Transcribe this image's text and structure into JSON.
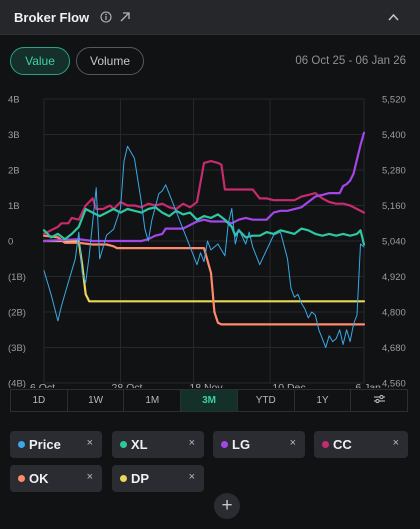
{
  "header": {
    "title": "Broker Flow"
  },
  "toggles": {
    "value_label": "Value",
    "volume_label": "Volume"
  },
  "date_range": "06 Oct 25 - 06 Jan 26",
  "ranges": [
    "1D",
    "1W",
    "1M",
    "3M",
    "YTD",
    "1Y"
  ],
  "active_range": "3M",
  "chips": [
    {
      "label": "Price",
      "color": "#3aa9e6"
    },
    {
      "label": "XL",
      "color": "#2fc7a0"
    },
    {
      "label": "LG",
      "color": "#a446e8"
    },
    {
      "label": "CC",
      "color": "#c62b6e"
    },
    {
      "label": "OK",
      "color": "#ff8a6b"
    },
    {
      "label": "DP",
      "color": "#e8d75a"
    }
  ],
  "chip_close": "×",
  "add_label": "+",
  "chart_data": {
    "type": "line",
    "x_ticks": [
      "6 Oct",
      "28 Oct",
      "18 Nov",
      "10 Dec",
      "6 Jan"
    ],
    "y_left_ticks": [
      "4B",
      "3B",
      "2B",
      "1B",
      "0",
      "(1B)",
      "(2B)",
      "(3B)",
      "(4B)"
    ],
    "y_right_ticks": [
      "5,520",
      "5,400",
      "5,280",
      "5,160",
      "5,040",
      "4,920",
      "4,800",
      "4,680",
      "4,560"
    ],
    "ylim_left": [
      -4,
      4
    ],
    "ylim_right": [
      4560,
      5520
    ],
    "x_range": [
      "2025-10-06",
      "2026-01-06"
    ],
    "grid": true,
    "series": [
      {
        "name": "Price",
        "axis": "right",
        "color": "#3aa9e6",
        "points": [
          [
            0,
            4940
          ],
          [
            2,
            4860
          ],
          [
            4,
            4770
          ],
          [
            5,
            4820
          ],
          [
            7,
            4900
          ],
          [
            9,
            4980
          ],
          [
            10,
            5070
          ],
          [
            11,
            4930
          ],
          [
            12,
            4900
          ],
          [
            13,
            4990
          ],
          [
            15,
            5220
          ],
          [
            16,
            4980
          ],
          [
            18,
            5060
          ],
          [
            20,
            5080
          ],
          [
            22,
            5150
          ],
          [
            23,
            5310
          ],
          [
            24,
            5360
          ],
          [
            26,
            5320
          ],
          [
            28,
            5170
          ],
          [
            29,
            5080
          ],
          [
            30,
            5040
          ],
          [
            31,
            5110
          ],
          [
            33,
            5200
          ],
          [
            34,
            5210
          ],
          [
            35,
            5230
          ],
          [
            36,
            5200
          ],
          [
            38,
            5140
          ],
          [
            40,
            5080
          ],
          [
            42,
            5020
          ],
          [
            44,
            4960
          ],
          [
            45,
            5000
          ],
          [
            46,
            4970
          ],
          [
            47,
            5040
          ],
          [
            48,
            5010
          ],
          [
            50,
            5030
          ],
          [
            52,
            4990
          ],
          [
            53,
            5100
          ],
          [
            54,
            5150
          ],
          [
            55,
            5030
          ],
          [
            56,
            5080
          ],
          [
            58,
            5030
          ],
          [
            59,
            5070
          ],
          [
            60,
            5020
          ],
          [
            62,
            4960
          ],
          [
            64,
            5010
          ],
          [
            66,
            5060
          ],
          [
            68,
            5070
          ],
          [
            70,
            4980
          ],
          [
            71,
            4880
          ],
          [
            72,
            4850
          ],
          [
            73,
            4860
          ],
          [
            74,
            4830
          ],
          [
            75,
            4810
          ],
          [
            76,
            4780
          ],
          [
            77,
            4800
          ],
          [
            78,
            4790
          ],
          [
            79,
            4740
          ],
          [
            80,
            4710
          ],
          [
            81,
            4680
          ],
          [
            82,
            4720
          ],
          [
            83,
            4700
          ],
          [
            84,
            4710
          ],
          [
            85,
            4740
          ],
          [
            86,
            4690
          ],
          [
            87,
            4740
          ],
          [
            88,
            4700
          ],
          [
            89,
            4760
          ],
          [
            90,
            4790
          ],
          [
            91,
            5030
          ],
          [
            92,
            5020
          ]
        ]
      },
      {
        "name": "XL",
        "axis": "left",
        "color": "#2fc7a0",
        "points": [
          [
            0,
            0.3
          ],
          [
            2,
            0.1
          ],
          [
            4,
            0.2
          ],
          [
            6,
            0.05
          ],
          [
            8,
            0.2
          ],
          [
            10,
            0.4
          ],
          [
            12,
            0.9
          ],
          [
            14,
            0.8
          ],
          [
            16,
            0.7
          ],
          [
            18,
            0.8
          ],
          [
            20,
            0.9
          ],
          [
            22,
            0.8
          ],
          [
            24,
            0.9
          ],
          [
            26,
            0.85
          ],
          [
            28,
            0.8
          ],
          [
            30,
            0.9
          ],
          [
            32,
            0.95
          ],
          [
            34,
            0.8
          ],
          [
            36,
            0.7
          ],
          [
            38,
            0.85
          ],
          [
            40,
            0.75
          ],
          [
            42,
            0.8
          ],
          [
            44,
            0.6
          ],
          [
            46,
            0.7
          ],
          [
            48,
            0.65
          ],
          [
            50,
            0.75
          ],
          [
            52,
            0.6
          ],
          [
            54,
            0.4
          ],
          [
            55,
            0.15
          ],
          [
            56,
            0.3
          ],
          [
            58,
            0.1
          ],
          [
            60,
            0.15
          ],
          [
            62,
            0.15
          ],
          [
            64,
            0.25
          ],
          [
            66,
            0.2
          ],
          [
            68,
            0.3
          ],
          [
            70,
            0.25
          ],
          [
            72,
            0.2
          ],
          [
            74,
            0.35
          ],
          [
            76,
            0.3
          ],
          [
            78,
            0.2
          ],
          [
            80,
            0.15
          ],
          [
            82,
            0.2
          ],
          [
            84,
            0.15
          ],
          [
            86,
            0.2
          ],
          [
            88,
            0.15
          ],
          [
            90,
            0.2
          ],
          [
            91,
            0.3
          ],
          [
            92,
            -0.1
          ]
        ]
      },
      {
        "name": "LG",
        "axis": "left",
        "color": "#a446e8",
        "points": [
          [
            0,
            0
          ],
          [
            10,
            0.05
          ],
          [
            14,
            0
          ],
          [
            20,
            0
          ],
          [
            28,
            0
          ],
          [
            30,
            0.05
          ],
          [
            32,
            0.15
          ],
          [
            34,
            0.2
          ],
          [
            35,
            0.35
          ],
          [
            40,
            0.35
          ],
          [
            42,
            0.45
          ],
          [
            44,
            0.55
          ],
          [
            46,
            0.6
          ],
          [
            48,
            0.55
          ],
          [
            52,
            0.55
          ],
          [
            54,
            0.5
          ],
          [
            56,
            0.6
          ],
          [
            58,
            0.65
          ],
          [
            60,
            0.6
          ],
          [
            64,
            0.6
          ],
          [
            66,
            0.8
          ],
          [
            68,
            0.85
          ],
          [
            70,
            0.85
          ],
          [
            74,
            0.95
          ],
          [
            78,
            1.25
          ],
          [
            80,
            1.3
          ],
          [
            82,
            1.35
          ],
          [
            85,
            1.35
          ],
          [
            86,
            1.55
          ],
          [
            87,
            1.6
          ],
          [
            88,
            1.7
          ],
          [
            89,
            1.9
          ],
          [
            90,
            2.3
          ],
          [
            91,
            2.7
          ],
          [
            92,
            3.05
          ]
        ]
      },
      {
        "name": "CC",
        "axis": "left",
        "color": "#c62b6e",
        "points": [
          [
            0,
            0.2
          ],
          [
            2,
            0.3
          ],
          [
            4,
            0.4
          ],
          [
            5,
            0.5
          ],
          [
            7,
            0.5
          ],
          [
            8,
            0.65
          ],
          [
            10,
            0.6
          ],
          [
            12,
            1.0
          ],
          [
            14,
            1.2
          ],
          [
            15,
            0.9
          ],
          [
            17,
            0.9
          ],
          [
            19,
            1.0
          ],
          [
            20,
            0.9
          ],
          [
            22,
            1.1
          ],
          [
            24,
            1.0
          ],
          [
            26,
            1.0
          ],
          [
            28,
            0.95
          ],
          [
            30,
            1.05
          ],
          [
            32,
            1.0
          ],
          [
            34,
            1.05
          ],
          [
            36,
            0.95
          ],
          [
            38,
            0.9
          ],
          [
            40,
            1.05
          ],
          [
            42,
            0.95
          ],
          [
            44,
            1.1
          ],
          [
            45,
            1.65
          ],
          [
            46,
            2.2
          ],
          [
            48,
            2.25
          ],
          [
            50,
            2.2
          ],
          [
            51,
            2.15
          ],
          [
            52,
            1.45
          ],
          [
            54,
            1.45
          ],
          [
            56,
            1.45
          ],
          [
            60,
            1.45
          ],
          [
            62,
            1.2
          ],
          [
            64,
            1.2
          ],
          [
            66,
            1.15
          ],
          [
            68,
            1.15
          ],
          [
            70,
            1.15
          ],
          [
            72,
            1.15
          ],
          [
            74,
            1.25
          ],
          [
            76,
            1.3
          ],
          [
            78,
            1.35
          ],
          [
            80,
            1.2
          ],
          [
            82,
            1.1
          ],
          [
            84,
            1.05
          ],
          [
            86,
            1.05
          ],
          [
            88,
            1.0
          ],
          [
            90,
            0.9
          ],
          [
            92,
            0.8
          ]
        ]
      },
      {
        "name": "OK",
        "axis": "left",
        "color": "#ff8a6b",
        "points": [
          [
            0,
            0.15
          ],
          [
            4,
            0.1
          ],
          [
            6,
            -0.05
          ],
          [
            10,
            -0.05
          ],
          [
            14,
            -0.1
          ],
          [
            18,
            -0.1
          ],
          [
            20,
            -0.15
          ],
          [
            21,
            -0.2
          ],
          [
            28,
            -0.2
          ],
          [
            34,
            -0.2
          ],
          [
            40,
            -0.2
          ],
          [
            44,
            -0.2
          ],
          [
            46,
            -0.2
          ],
          [
            48,
            -0.9
          ],
          [
            49,
            -2.0
          ],
          [
            50,
            -2.3
          ],
          [
            51,
            -2.35
          ],
          [
            92,
            -2.35
          ]
        ]
      },
      {
        "name": "DP",
        "axis": "left",
        "color": "#e8d75a",
        "points": [
          [
            0,
            0
          ],
          [
            10,
            0
          ],
          [
            11,
            -0.7
          ],
          [
            12,
            -1.5
          ],
          [
            13,
            -1.7
          ],
          [
            20,
            -1.7
          ],
          [
            40,
            -1.7
          ],
          [
            60,
            -1.7
          ],
          [
            80,
            -1.7
          ],
          [
            92,
            -1.7
          ]
        ]
      }
    ]
  }
}
